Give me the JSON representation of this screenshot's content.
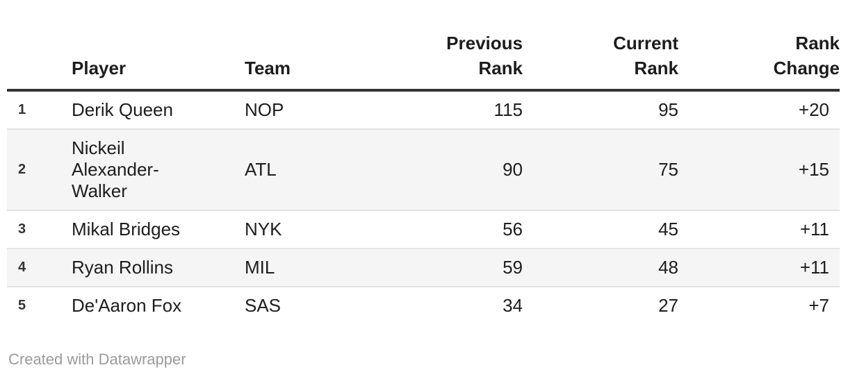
{
  "chart_data": {
    "type": "table",
    "columns": [
      "",
      "Player",
      "Team",
      "Previous Rank",
      "Current Rank",
      "Rank Change"
    ],
    "rows": [
      {
        "rank": "1",
        "player": "Derik Queen",
        "team": "NOP",
        "previous_rank": "115",
        "current_rank": "95",
        "rank_change": "+20"
      },
      {
        "rank": "2",
        "player": "Nickeil Alexander-Walker",
        "team": "ATL",
        "previous_rank": "90",
        "current_rank": "75",
        "rank_change": "+15"
      },
      {
        "rank": "3",
        "player": "Mikal Bridges",
        "team": "NYK",
        "previous_rank": "56",
        "current_rank": "45",
        "rank_change": "+11"
      },
      {
        "rank": "4",
        "player": "Ryan Rollins",
        "team": "MIL",
        "previous_rank": "59",
        "current_rank": "48",
        "rank_change": "+11"
      },
      {
        "rank": "5",
        "player": "De'Aaron Fox",
        "team": "SAS",
        "previous_rank": "34",
        "current_rank": "27",
        "rank_change": "+7"
      }
    ],
    "layout": {
      "zebra_striping": true,
      "header_rule": true,
      "numeric_columns_right_aligned": true
    }
  },
  "footer": {
    "credit": "Created with Datawrapper"
  },
  "colors": {
    "header_rule": "#333333",
    "row_stripe": "#f5f5f5",
    "row_divider": "#e3e3e3",
    "text": "#1d1d1d",
    "credit_text": "#9b9b9b"
  }
}
